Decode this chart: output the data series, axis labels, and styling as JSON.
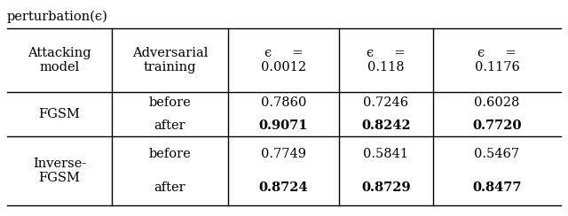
{
  "title": "perturbation(ϵ)",
  "col_headers": [
    "Attacking\nmodel",
    "Adversarial\ntraining",
    "ϵ     =\n0.0012",
    "ϵ     =\n0.118",
    "ϵ     =\n0.1176"
  ],
  "rows": [
    {
      "group": "FGSM",
      "subrows": [
        {
          "label": "before",
          "vals": [
            "0.7860",
            "0.7246",
            "0.6028"
          ],
          "bold": [
            false,
            false,
            false
          ]
        },
        {
          "label": "after",
          "vals": [
            "0.9071",
            "0.8242",
            "0.7720"
          ],
          "bold": [
            true,
            true,
            true
          ]
        }
      ]
    },
    {
      "group": "Inverse-\nFGSM",
      "subrows": [
        {
          "label": "before",
          "vals": [
            "0.7749",
            "0.5841",
            "0.5467"
          ],
          "bold": [
            false,
            false,
            false
          ]
        },
        {
          "label": "after",
          "vals": [
            "0.8724",
            "0.8729",
            "0.8477"
          ],
          "bold": [
            true,
            true,
            true
          ]
        }
      ]
    }
  ],
  "background_color": "#ffffff",
  "line_color": "#000000",
  "font_size": 10.5
}
